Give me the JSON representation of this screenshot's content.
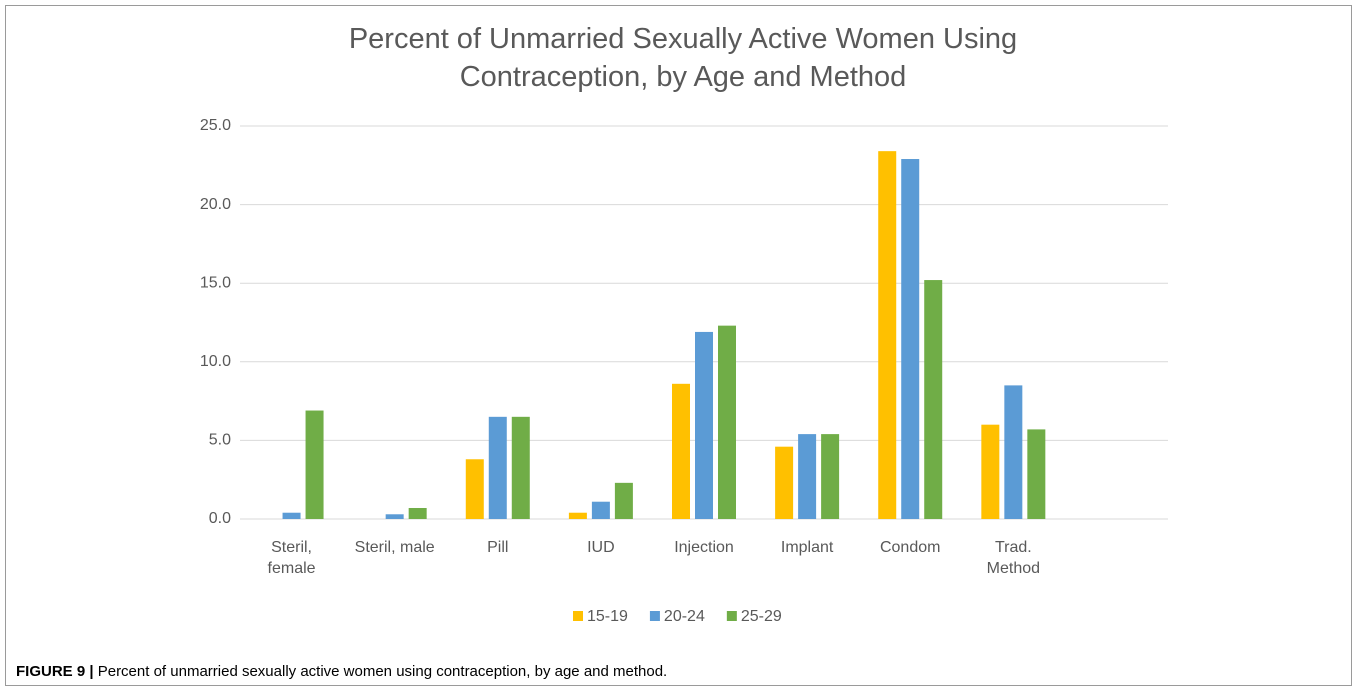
{
  "chart_data": {
    "type": "bar",
    "title": "Percent of Unmarried Sexually Active Women Using Contraception, by Age and Method",
    "categories": [
      "Steril, female",
      "Steril, male",
      "Pill",
      "IUD",
      "Injection",
      "Implant",
      "Condom",
      "Trad. Method",
      null
    ],
    "series": [
      {
        "name": "15-19",
        "color": "#ffc000",
        "values": [
          0,
          0,
          3.8,
          0.4,
          8.6,
          4.6,
          23.4,
          6.0,
          null
        ]
      },
      {
        "name": "20-24",
        "color": "#5b9bd5",
        "values": [
          0.4,
          0.3,
          6.5,
          1.1,
          11.9,
          5.4,
          22.9,
          8.5,
          null
        ]
      },
      {
        "name": "25-29",
        "color": "#70ad47",
        "values": [
          6.9,
          0.7,
          6.5,
          2.3,
          12.3,
          5.4,
          15.2,
          5.7,
          null
        ]
      }
    ],
    "ylim": [
      0,
      25
    ],
    "yticks": [
      {
        "value": 0,
        "label": "0.0"
      },
      {
        "value": 5,
        "label": "5.0"
      },
      {
        "value": 10,
        "label": "10.0"
      },
      {
        "value": 15,
        "label": "15.0"
      },
      {
        "value": 20,
        "label": "20.0"
      },
      {
        "value": 25,
        "label": "25.0"
      }
    ],
    "grid": true,
    "legend": "bottom"
  },
  "caption": {
    "label": "FIGURE 9 |",
    "text": "Percent of unmarried sexually active women using contraception, by age and method."
  }
}
